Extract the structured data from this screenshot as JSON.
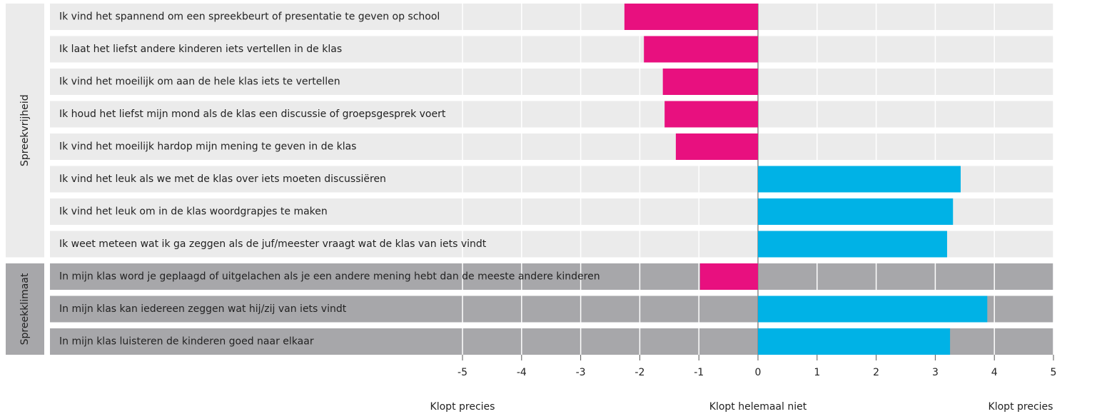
{
  "chart_data": {
    "type": "bar",
    "orientation": "horizontal",
    "groups": [
      {
        "name": "Spreekvrijheid",
        "background": "#ebebeb",
        "categories": [
          "Ik vind het spannend om een spreekbeurt of presentatie te geven op school",
          "Ik laat het liefst andere kinderen iets vertellen in de klas",
          "Ik vind het moeilijk om aan de hele klas iets te vertellen",
          "Ik houd het liefst mijn mond als de klas een discussie of groepsgesprek voert",
          "Ik vind het moeilijk hardop mijn mening te geven in de klas",
          "Ik vind het leuk als we met de klas over iets moeten discussiëren",
          "Ik vind het leuk om in de klas woordgrapjes te maken",
          "Ik weet meteen wat ik ga zeggen als de juf/meester vraagt wat de klas van iets vindt"
        ],
        "values": [
          -2.26,
          -1.93,
          -1.61,
          -1.58,
          -1.39,
          3.43,
          3.3,
          3.2
        ]
      },
      {
        "name": "Spreekklimaat",
        "background": "#a7a7aa",
        "categories": [
          "In mijn klas word je geplaagd of uitgelachen als je een andere mening hebt dan de meeste andere kinderen",
          "In mijn klas kan iedereen zeggen wat hij/zij van iets vindt",
          "In mijn klas luisteren de kinderen goed naar elkaar"
        ],
        "values": [
          -0.98,
          3.88,
          3.25
        ]
      }
    ],
    "negative_color": "#e8107f",
    "positive_color": "#00b2e6",
    "xlim": [
      -5,
      5
    ],
    "xticks": [
      -5,
      -4,
      -3,
      -2,
      -1,
      0,
      1,
      2,
      3,
      4,
      5
    ],
    "grid": true,
    "axis_labels": [
      "Klopt precies",
      "Klopt helemaal niet",
      "Klopt precies"
    ]
  }
}
